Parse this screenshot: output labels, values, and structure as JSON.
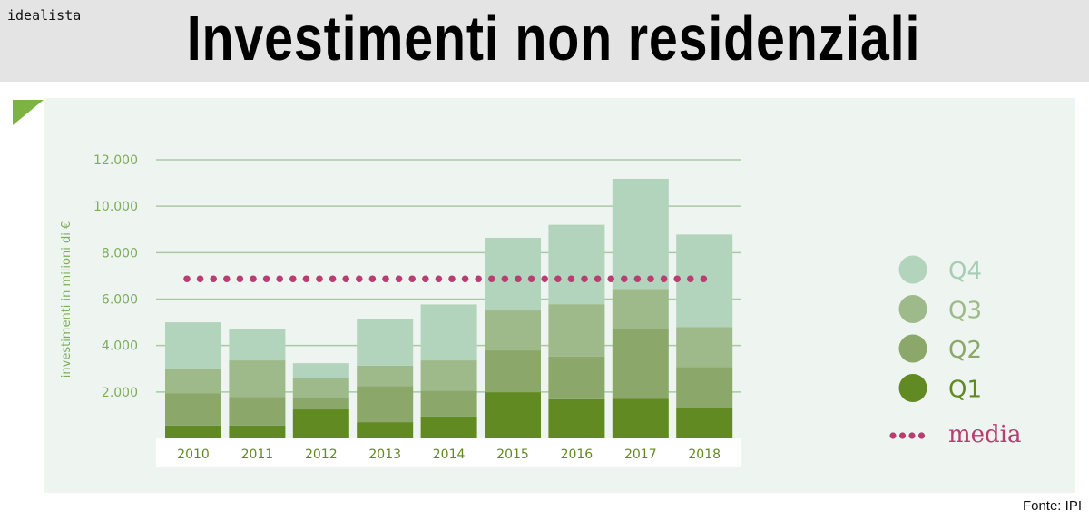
{
  "header": {
    "brand": "idealista",
    "title": "Investimenti non residenziali"
  },
  "source": "Fonte: IPI",
  "chart_data": {
    "type": "bar",
    "stacked": true,
    "title": "Investimenti non residenziali",
    "xlabel": "",
    "ylabel": "investimenti in milioni di €",
    "ylim": [
      0,
      12000
    ],
    "yticks": [
      "2.000",
      "4.000",
      "6.000",
      "8.000",
      "10.000",
      "12.000"
    ],
    "ytick_values": [
      2000,
      4000,
      6000,
      8000,
      10000,
      12000
    ],
    "grid": true,
    "legend_position": "right",
    "categories": [
      "2010",
      "2011",
      "2012",
      "2013",
      "2014",
      "2015",
      "2016",
      "2017",
      "2018"
    ],
    "series": [
      {
        "name": "Q1",
        "color": "#618a22",
        "values": [
          550,
          550,
          1250,
          700,
          950,
          1990,
          1690,
          1700,
          1290
        ]
      },
      {
        "name": "Q2",
        "color": "#8ba86a",
        "values": [
          1400,
          1230,
          500,
          1550,
          1100,
          1800,
          1840,
          3020,
          1790
        ]
      },
      {
        "name": "Q3",
        "color": "#9fba8a",
        "values": [
          1050,
          1580,
          830,
          880,
          1310,
          1720,
          2250,
          1720,
          1720
        ]
      },
      {
        "name": "Q4",
        "color": "#b3d4bc",
        "values": [
          2000,
          1360,
          660,
          2020,
          2410,
          3130,
          3420,
          4740,
          3980
        ]
      }
    ],
    "media": {
      "name": "media",
      "value": 6870,
      "color": "#b93d70"
    }
  }
}
